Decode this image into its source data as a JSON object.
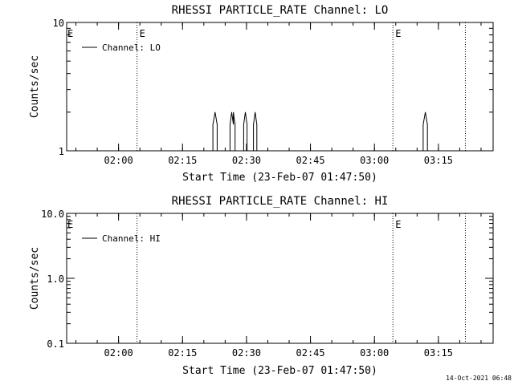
{
  "footer": {
    "timestamp": "14-Oct-2021 06:48"
  },
  "chart_data": [
    {
      "type": "line",
      "title": "RHESSI PARTICLE_RATE Channel: LO",
      "xlabel": "Start Time (23-Feb-07 01:47:50)",
      "ylabel": "Counts/sec",
      "y_scale": "log",
      "ylim": [
        1,
        10
      ],
      "xlim_minutes": [
        0,
        100
      ],
      "y_ticks": [
        {
          "value": 1,
          "label": "1"
        },
        {
          "value": 10,
          "label": "10"
        }
      ],
      "x_ticks": [
        {
          "t": 12.17,
          "label": "02:00"
        },
        {
          "t": 27.17,
          "label": "02:15"
        },
        {
          "t": 42.17,
          "label": "02:30"
        },
        {
          "t": 57.17,
          "label": "02:45"
        },
        {
          "t": 72.17,
          "label": "03:00"
        },
        {
          "t": 87.17,
          "label": "03:15"
        }
      ],
      "event_lines": [
        {
          "t": 16.5,
          "label": "E"
        },
        {
          "t": 76.5,
          "label": "E"
        },
        {
          "t": 93.5,
          "label": ""
        }
      ],
      "left_marker": "E",
      "legend": {
        "position": "top-left",
        "entries": [
          "Channel: LO"
        ]
      },
      "series": [
        {
          "name": "Channel: LO",
          "values": [
            [
              0,
              1
            ],
            [
              34.3,
              1
            ],
            [
              34.3,
              1.6
            ],
            [
              34.8,
              2
            ],
            [
              35.3,
              1.6
            ],
            [
              35.3,
              1
            ],
            [
              38.3,
              1
            ],
            [
              38.3,
              1.6
            ],
            [
              38.7,
              2
            ],
            [
              39.1,
              1.6
            ],
            [
              39.1,
              2
            ],
            [
              39.5,
              1.6
            ],
            [
              39.5,
              1
            ],
            [
              41.5,
              1
            ],
            [
              41.5,
              1.6
            ],
            [
              41.9,
              2
            ],
            [
              42.3,
              1.6
            ],
            [
              42.3,
              1
            ],
            [
              43.8,
              1
            ],
            [
              43.8,
              1.6
            ],
            [
              44.2,
              2
            ],
            [
              44.6,
              1.6
            ],
            [
              44.6,
              1
            ],
            [
              83.6,
              1
            ],
            [
              83.6,
              1.6
            ],
            [
              84.1,
              2
            ],
            [
              84.6,
              1.6
            ],
            [
              84.6,
              1
            ],
            [
              100,
              1
            ]
          ]
        }
      ]
    },
    {
      "type": "line",
      "title": "RHESSI PARTICLE_RATE Channel: HI",
      "xlabel": "Start Time (23-Feb-07 01:47:50)",
      "ylabel": "Counts/sec",
      "y_scale": "log",
      "ylim": [
        0.1,
        10
      ],
      "xlim_minutes": [
        0,
        100
      ],
      "y_ticks": [
        {
          "value": 0.1,
          "label": "0.1"
        },
        {
          "value": 1,
          "label": "1.0"
        },
        {
          "value": 10,
          "label": "10.0"
        }
      ],
      "x_ticks": [
        {
          "t": 12.17,
          "label": "02:00"
        },
        {
          "t": 27.17,
          "label": "02:15"
        },
        {
          "t": 42.17,
          "label": "02:30"
        },
        {
          "t": 57.17,
          "label": "02:45"
        },
        {
          "t": 72.17,
          "label": "03:00"
        },
        {
          "t": 87.17,
          "label": "03:15"
        }
      ],
      "event_lines": [
        {
          "t": 16.5,
          "label": ""
        },
        {
          "t": 76.5,
          "label": "E"
        },
        {
          "t": 93.5,
          "label": ""
        }
      ],
      "left_marker": "E",
      "legend": {
        "position": "top-left",
        "entries": [
          "Channel: HI"
        ]
      },
      "series": [
        {
          "name": "Channel: HI",
          "values": []
        }
      ]
    }
  ]
}
